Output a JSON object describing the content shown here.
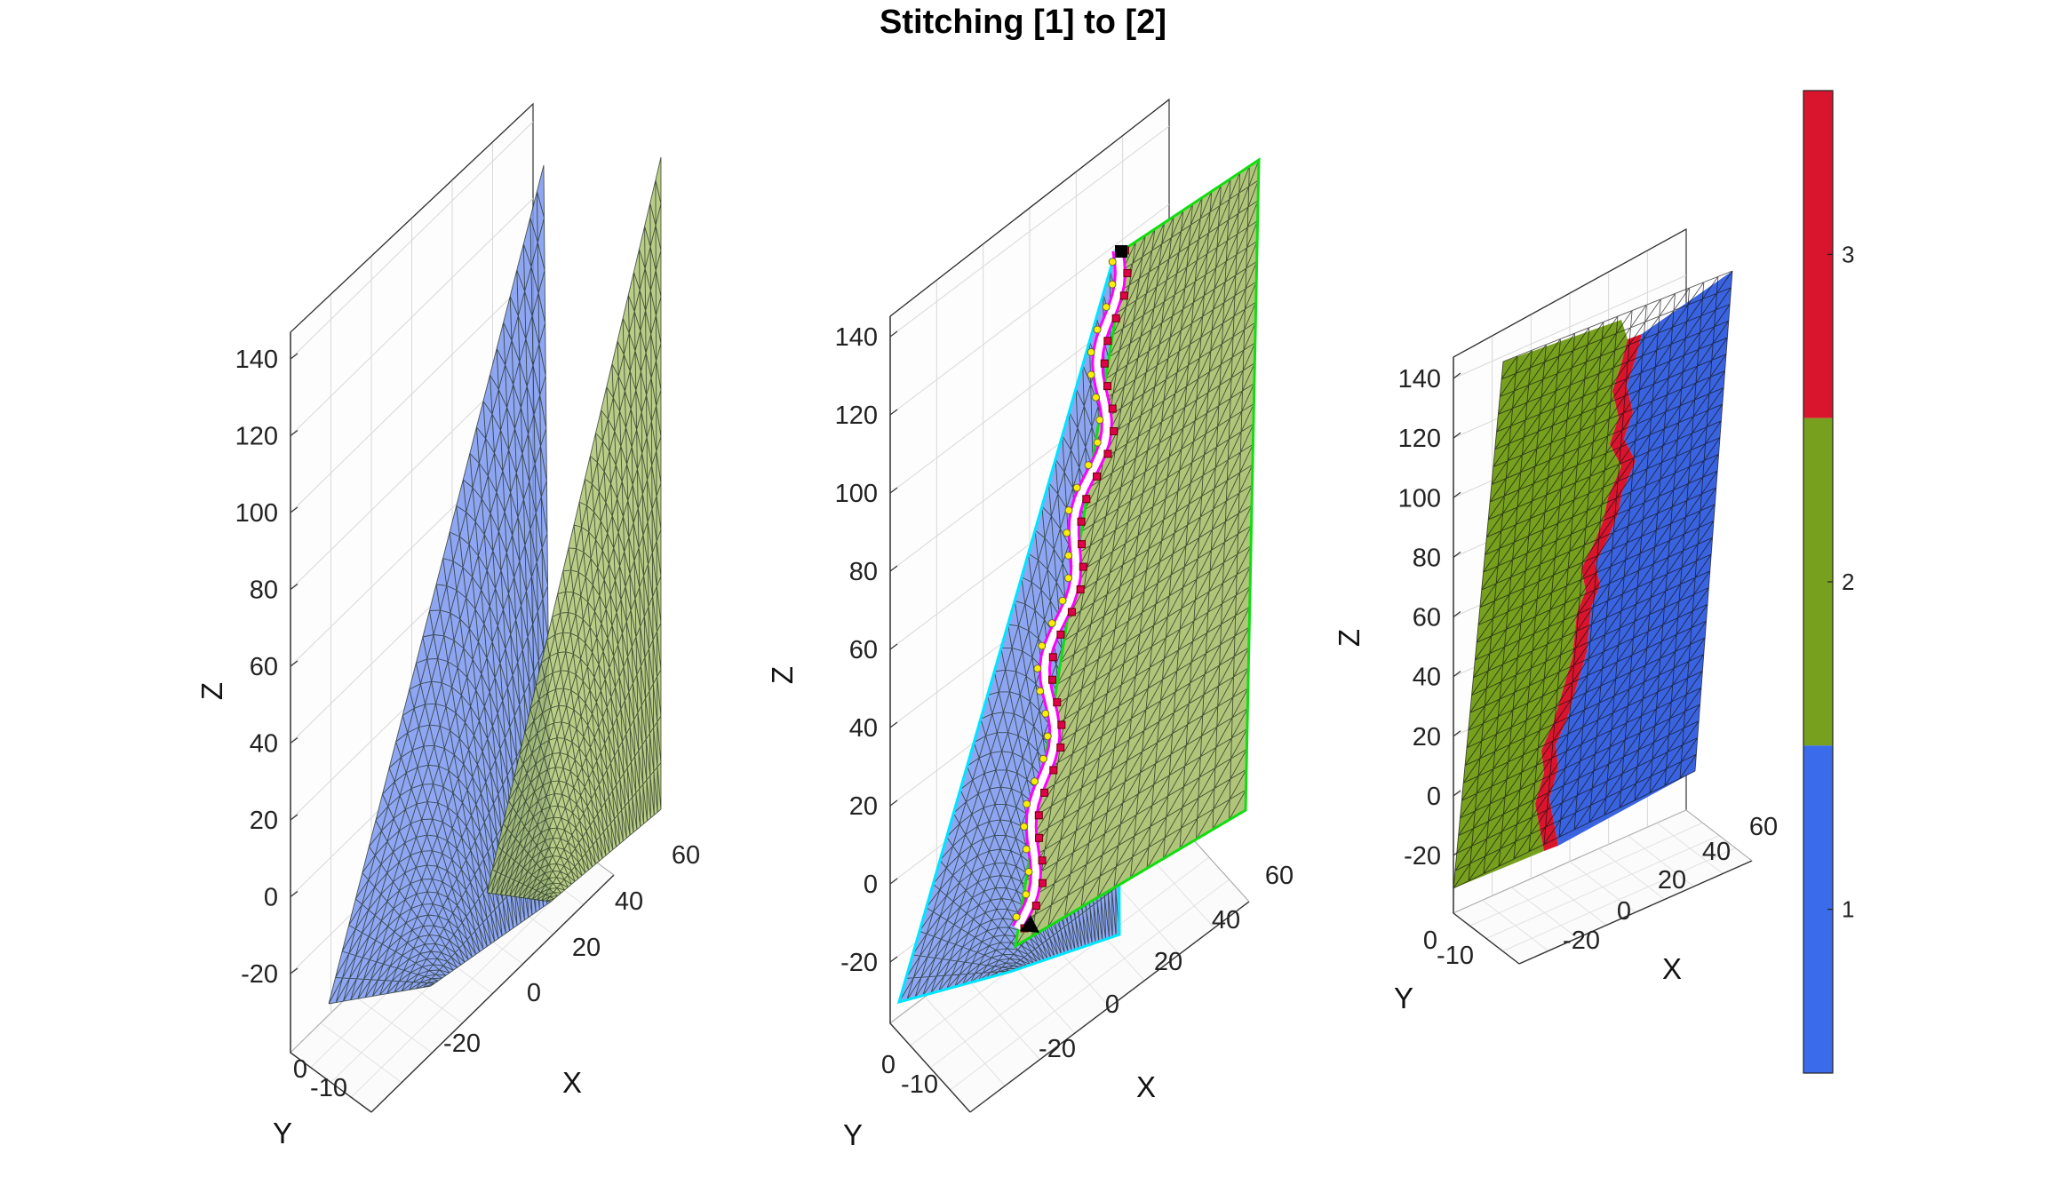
{
  "figure": {
    "title": "Stitching [1] to [2]"
  },
  "chart_data": [
    {
      "type": "surface",
      "panel": "left",
      "description_mode": "overlapping triangulated surfaces",
      "xlabel": "X",
      "ylabel": "Y",
      "zlabel": "Z",
      "x_ticks": [
        "-20",
        "0",
        "20",
        "40",
        "60"
      ],
      "y_ticks": [
        "0",
        "-10"
      ],
      "z_ticks": [
        "140",
        "120",
        "100",
        "80",
        "60",
        "40",
        "20",
        "0",
        "-20"
      ],
      "xlim": [
        -30,
        65
      ],
      "ylim": [
        -15,
        5
      ],
      "zlim": [
        -30,
        150
      ],
      "grid": true,
      "series": [
        {
          "id": "1",
          "color": "#7b97f0",
          "opacity": 0.85
        },
        {
          "id": "2",
          "color": "#a9c06a",
          "opacity": 0.8
        }
      ]
    },
    {
      "type": "surface",
      "panel": "middle",
      "description_mode": "surfaces with stitch seam",
      "xlabel": "X",
      "ylabel": "Y",
      "zlabel": "Z",
      "x_ticks": [
        "-20",
        "0",
        "20",
        "40",
        "60"
      ],
      "y_ticks": [
        "0",
        "-10"
      ],
      "z_ticks": [
        "140",
        "120",
        "100",
        "80",
        "60",
        "40",
        "20",
        "0",
        "-20"
      ],
      "xlim": [
        -30,
        65
      ],
      "ylim": [
        -15,
        5
      ],
      "zlim": [
        -30,
        150
      ],
      "grid": true,
      "series": [
        {
          "id": "1",
          "color": "#8ea6f2",
          "edge": "#00e5ff"
        },
        {
          "id": "2",
          "color": "#b1c57a",
          "edge": "#11dd11"
        }
      ],
      "seam_colors": {
        "boundary": "#ff00ff",
        "fill": "#ffffff",
        "points": "#e0004a",
        "markers": "#ffee00"
      }
    },
    {
      "type": "surface",
      "panel": "right",
      "description_mode": "stitched surface colored by id",
      "xlabel": "X",
      "ylabel": "Y",
      "zlabel": "Z",
      "x_ticks": [
        "-20",
        "0",
        "20",
        "40",
        "60"
      ],
      "y_ticks": [
        "0",
        "-10"
      ],
      "z_ticks": [
        "140",
        "120",
        "100",
        "80",
        "60",
        "40",
        "20",
        "0",
        "-20"
      ],
      "xlim": [
        -30,
        65
      ],
      "ylim": [
        -15,
        5
      ],
      "zlim": [
        -30,
        150
      ],
      "grid": true,
      "series": [
        {
          "id": "1",
          "color": "#3a63e0"
        },
        {
          "id": "2",
          "color": "#76a01e"
        },
        {
          "id": "3",
          "color": "#d9142d"
        }
      ]
    },
    {
      "type": "colorbar",
      "ticks": [
        "3",
        "2",
        "1"
      ],
      "colors": [
        "#d9142d",
        "#76a01e",
        "#3a6bea"
      ]
    }
  ]
}
